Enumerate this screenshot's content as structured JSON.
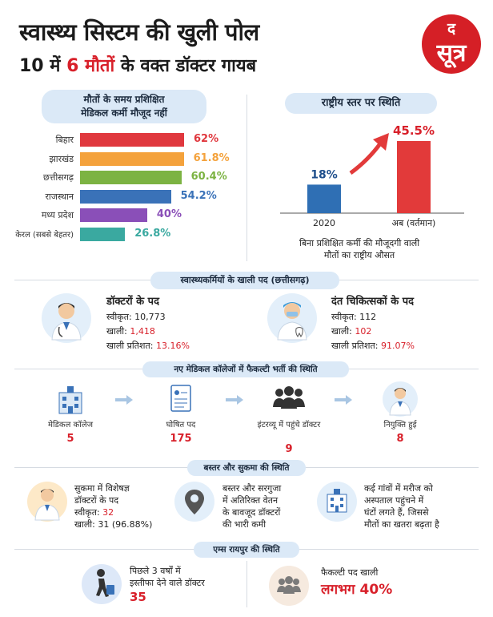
{
  "header": {
    "title": "स्वास्थ्य सिस्टम की खुली पोल",
    "subtitle_prefix": "10 में ",
    "subtitle_highlight": "6 मौतों",
    "subtitle_suffix": " के वक्त डॉक्टर गायब",
    "logo_top": "द",
    "logo_main": "सूत्र",
    "logo_color": "#d51f26"
  },
  "left_panel": {
    "heading_line1": "मौतों के समय प्रशिक्षित",
    "heading_line2": "मेडिकल कर्मी मौजूद नहीं"
  },
  "chart_data": [
    {
      "type": "bar",
      "orientation": "horizontal",
      "categories": [
        "बिहार",
        "झारखंड",
        "छत्तीसगढ़",
        "राजस्थान",
        "मध्य प्रदेश",
        "केरल (सबसे बेहतर)"
      ],
      "values": [
        62,
        61.8,
        60.4,
        54.2,
        40,
        26.8
      ],
      "value_labels": [
        "62%",
        "61.8%",
        "60.4%",
        "54.2%",
        "40%",
        "26.8%"
      ],
      "colors": [
        "#e0383e",
        "#f4a23c",
        "#7cb342",
        "#3a72b8",
        "#8a4fb8",
        "#3aa9a0"
      ],
      "xlim": [
        0,
        62
      ]
    },
    {
      "type": "bar",
      "title": "राष्ट्रीय स्तर पर स्थिति",
      "categories": [
        "2020",
        "अब (वर्तमान)"
      ],
      "values": [
        18,
        45.5
      ],
      "value_labels": [
        "18%",
        "45.5%"
      ],
      "colors": [
        "#2f6fb4",
        "#e23a3a"
      ],
      "ylim": [
        0,
        45.5
      ],
      "caption_line1": "बिना प्रशिक्षित कर्मी की मौजूदगी वाली",
      "caption_line2": "मौतों का राष्ट्रीय औसत"
    }
  ],
  "vacancies": {
    "heading": "स्वास्थ्यकर्मियों के खाली पद (छत्तीसगढ़)",
    "doctors": {
      "title": "डॉक्टरों के पद",
      "sanctioned_label": "स्वीकृत:",
      "sanctioned": "10,773",
      "vacant_label": "खाली:",
      "vacant": "1,418",
      "percent_label": "खाली प्रतिशत:",
      "percent": "13.16%"
    },
    "dentists": {
      "title": "दंत चिकित्सकों के पद",
      "sanctioned_label": "स्वीकृत:",
      "sanctioned": "112",
      "vacant_label": "खाली:",
      "vacant": "102",
      "percent_label": "खाली प्रतिशत:",
      "percent": "91.07%"
    }
  },
  "faculty": {
    "heading": "नए मेडिकल कॉलेजों में फैकल्टी भर्ती की स्थिति",
    "steps": [
      {
        "label": "मेडिकल कॉलेज",
        "value": "5"
      },
      {
        "label": "घोषित पद",
        "value": "175"
      },
      {
        "label": "इंटरव्यू में पहुंचे डॉक्टर",
        "value": "9"
      },
      {
        "label": "नियुक्ति हुई",
        "value": "8"
      }
    ]
  },
  "bastar": {
    "heading": "बस्तर और सुकमा की स्थिति",
    "col1_line1": "सुकमा में विशेषज्ञ",
    "col1_line2": "डॉक्टरों के पद",
    "col1_sanctioned_label": "स्वीकृत:",
    "col1_sanctioned": "32",
    "col1_vacant_label": "खाली:",
    "col1_vacant": "31 (96.88%)",
    "col2_lines": [
      "बस्तर और सरगुजा",
      "में अतिरिक्त वेतन",
      "के बावजूद डॉक्टरों",
      "की भारी कमी"
    ],
    "col3_lines": [
      "कई गांवों में मरीज को",
      "अस्पताल पहुंचने में",
      "घंटों लगते हैं, जिससे",
      "मौतों का खतरा बढ़ता है"
    ]
  },
  "aiims": {
    "heading": "एम्स रायपुर की स्थिति",
    "resign_line1": "पिछले 3 वर्षों में",
    "resign_line2": "इस्तीफा देने वाले डॉक्टर",
    "resign_value": "35",
    "faculty_line": "फैकल्टी पद खाली",
    "faculty_value": "लगभग 40%"
  }
}
